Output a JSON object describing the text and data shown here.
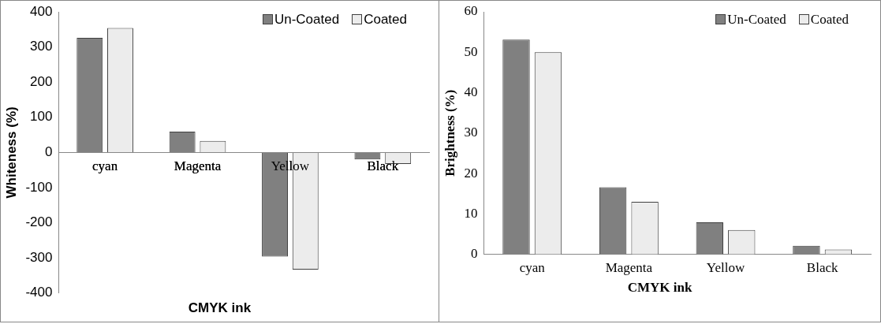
{
  "chart_data": [
    {
      "type": "bar",
      "categories": [
        "cyan",
        "Magenta",
        "Yellow",
        "Black"
      ],
      "xlabel": "CMYK ink",
      "ylabel": "Whiteness (%)",
      "ylim": [
        -400,
        400
      ],
      "yticks": [
        -400,
        -300,
        -200,
        -100,
        0,
        100,
        200,
        300,
        400
      ],
      "grid": false,
      "legend": "top right",
      "series": [
        {
          "name": "Un-Coated",
          "color": "#808080",
          "values": [
            326,
            59,
            -296,
            -20
          ]
        },
        {
          "name": "Coated",
          "color": "#ececec",
          "values": [
            354,
            33,
            -333,
            -33
          ]
        }
      ]
    },
    {
      "type": "bar",
      "categories": [
        "cyan",
        "Magenta",
        "Yellow",
        "Black"
      ],
      "xlabel": "CMYK ink",
      "ylabel": "Brightness (%)",
      "ylim": [
        0,
        60
      ],
      "yticks": [
        0,
        10,
        20,
        30,
        40,
        50,
        60
      ],
      "grid": false,
      "legend": "top right",
      "series": [
        {
          "name": "Un-Coated",
          "color": "#808080",
          "values": [
            53.1,
            16.6,
            7.9,
            2.1
          ]
        },
        {
          "name": "Coated",
          "color": "#ececec",
          "values": [
            50,
            13,
            6,
            1.2
          ]
        }
      ]
    }
  ]
}
